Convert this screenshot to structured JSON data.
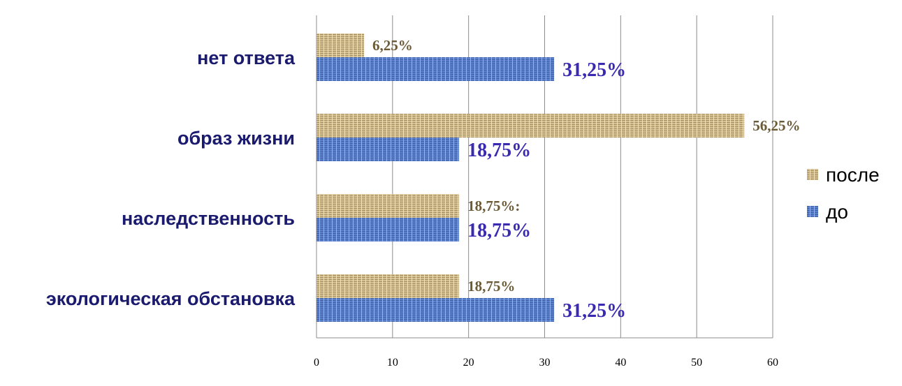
{
  "chart_data": {
    "type": "bar",
    "orientation": "horizontal",
    "categories": [
      "нет ответа",
      "образ жизни",
      "наследственность",
      "экологическая обстановка"
    ],
    "series": [
      {
        "name": "после",
        "values": [
          6.25,
          56.25,
          18.75,
          18.75
        ],
        "data_labels": [
          "6,25%",
          "56,25%",
          "18,75%:",
          "18,75%"
        ],
        "color": "#c8b48a"
      },
      {
        "name": "до",
        "values": [
          31.25,
          18.75,
          18.75,
          31.25
        ],
        "data_labels": [
          "31,25%",
          "18,75%",
          "18,75%",
          "31,25%"
        ],
        "color": "#5a7fc8"
      }
    ],
    "xlim": [
      0,
      60
    ],
    "ticks": [
      0,
      10,
      20,
      30,
      40,
      50,
      60
    ],
    "grid": true,
    "legend_position": "right",
    "title": "",
    "xlabel": "",
    "ylabel": ""
  }
}
